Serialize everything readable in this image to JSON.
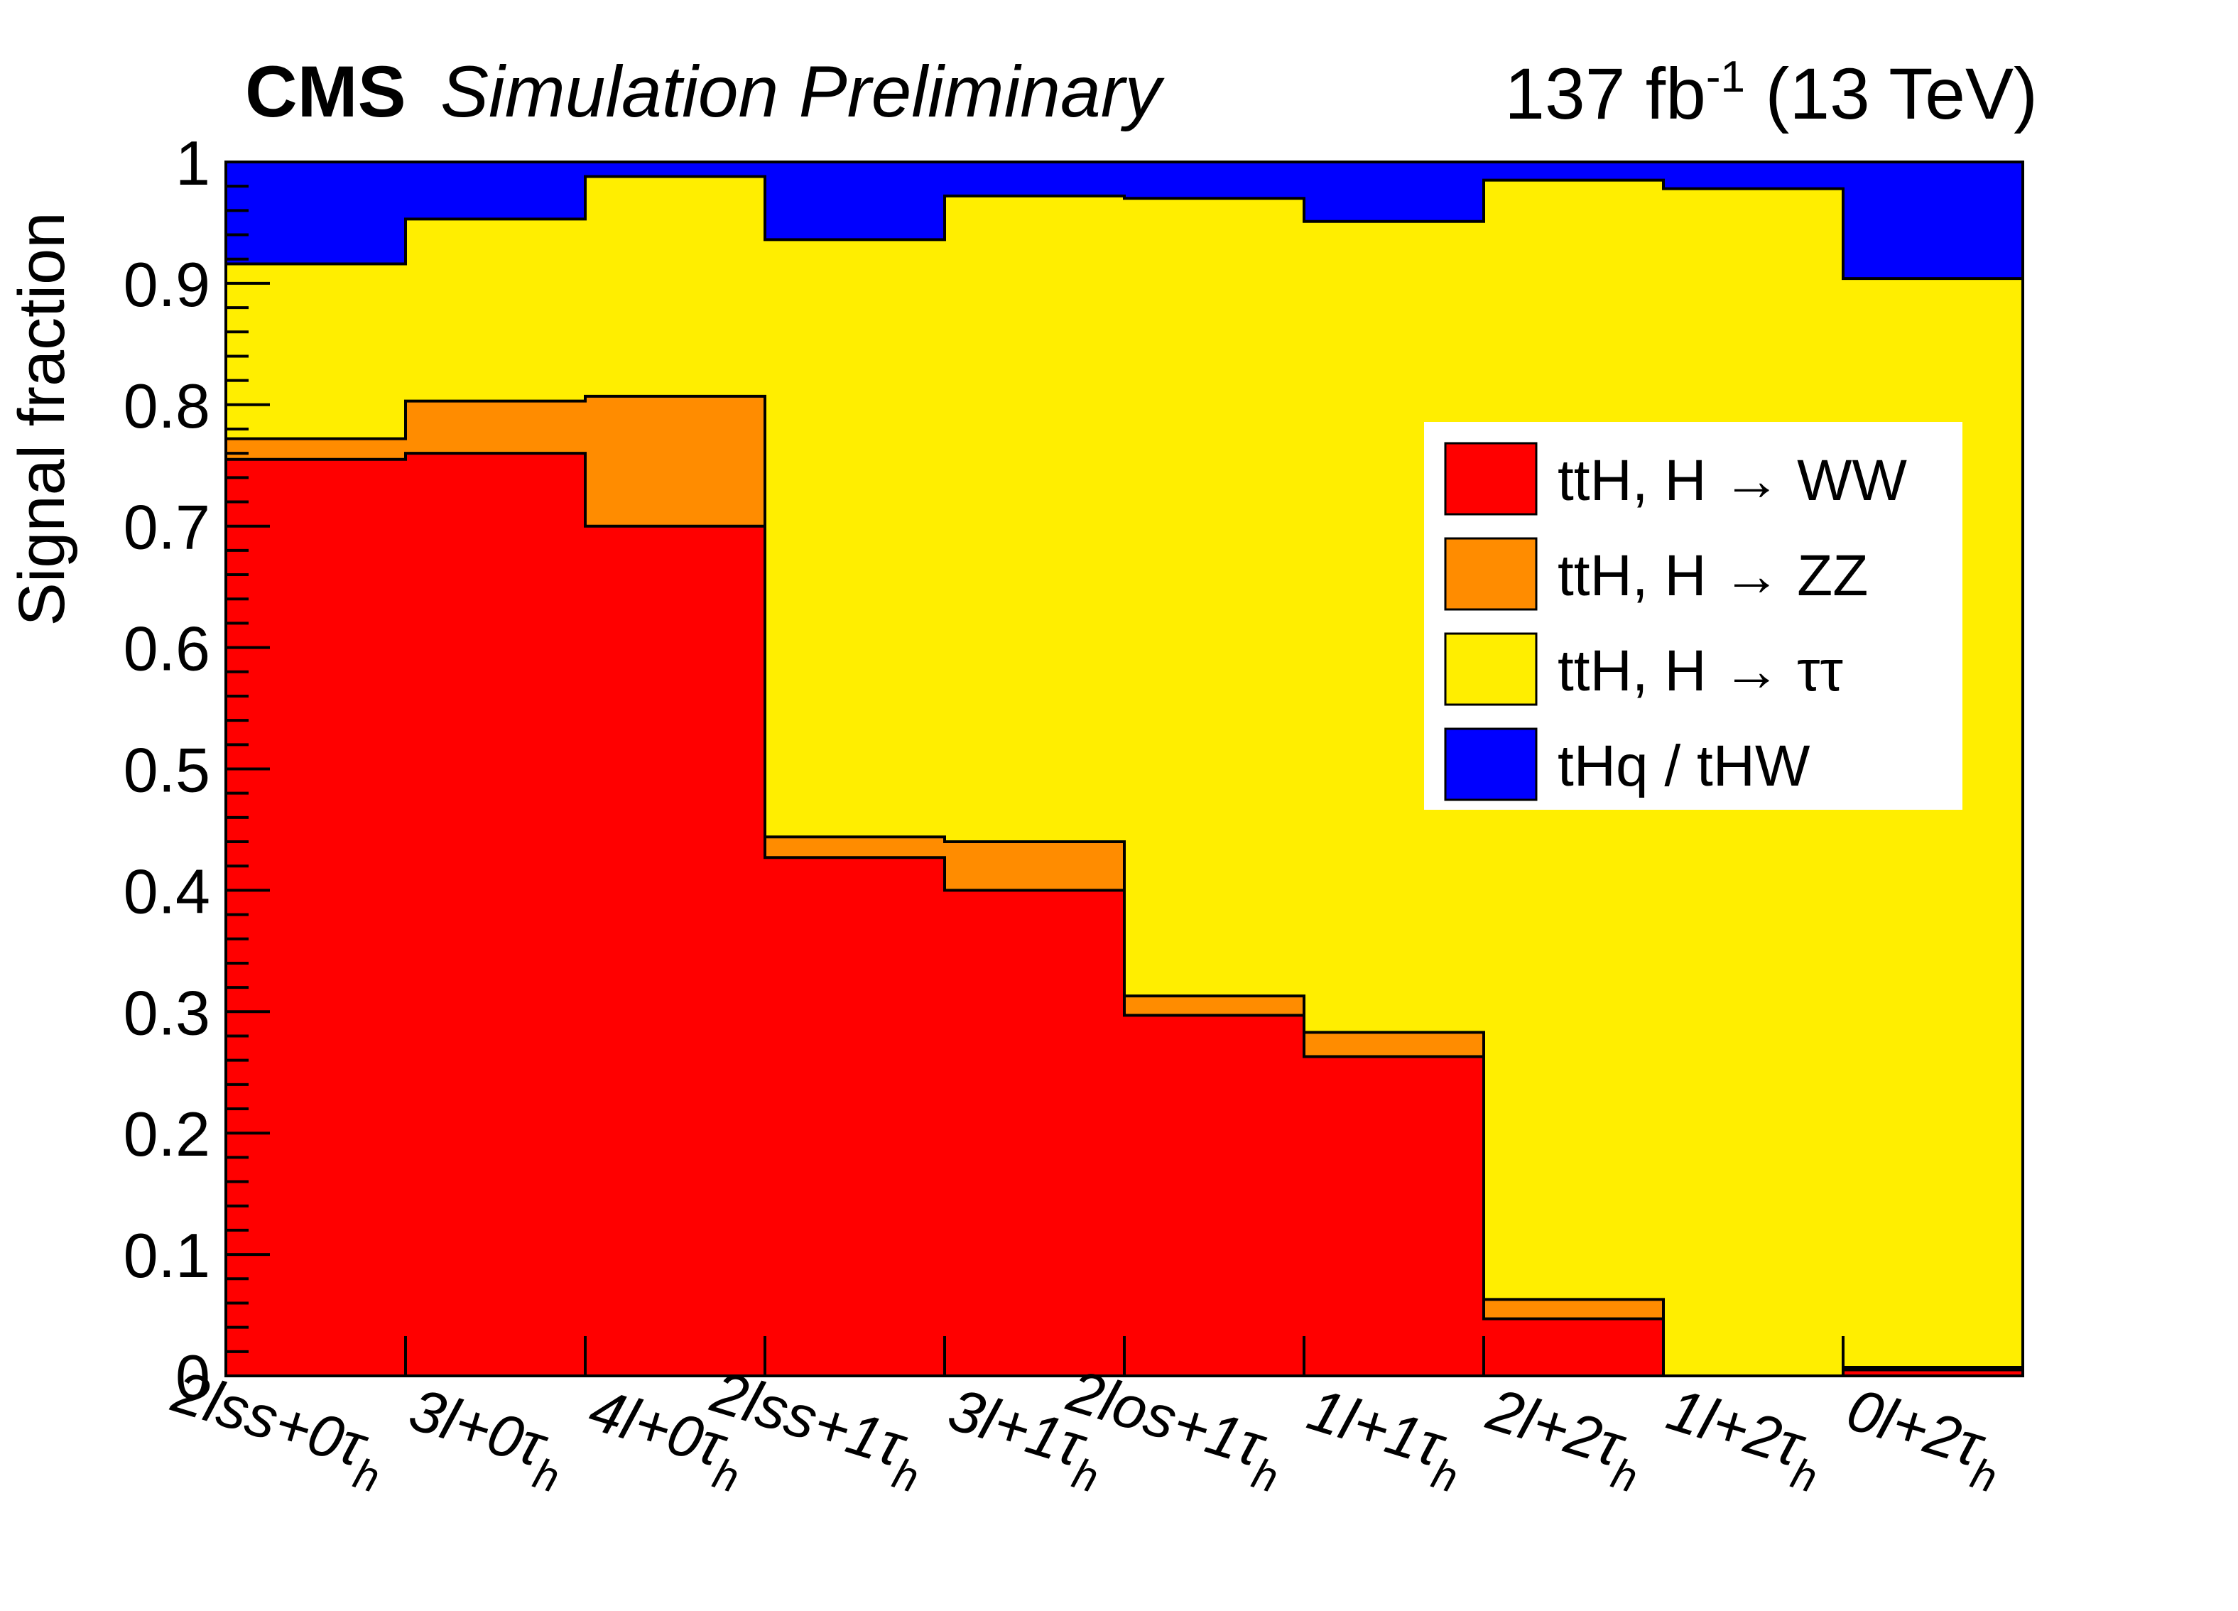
{
  "header": {
    "experiment": "CMS",
    "status": "Simulation Preliminary",
    "lumi_value": "137 fb",
    "lumi_exponent": "-1",
    "energy": " (13 TeV)"
  },
  "chart_data": {
    "type": "bar",
    "stacked": true,
    "normalized": true,
    "categories": [
      {
        "main": "2lss+0τ",
        "sub": "h"
      },
      {
        "main": "3l+0τ",
        "sub": "h"
      },
      {
        "main": "4l+0τ",
        "sub": "h"
      },
      {
        "main": "2lss+1τ",
        "sub": "h"
      },
      {
        "main": "3l+1τ",
        "sub": "h"
      },
      {
        "main": "2los+1τ",
        "sub": "h"
      },
      {
        "main": "1l+1τ",
        "sub": "h"
      },
      {
        "main": "2l+2τ",
        "sub": "h"
      },
      {
        "main": "1l+2τ",
        "sub": "h"
      },
      {
        "main": "0l+2τ",
        "sub": "h"
      }
    ],
    "series": [
      {
        "name": "ttH, H → WW",
        "color": "#ff0000",
        "values": [
          0.755,
          0.76,
          0.7,
          0.427,
          0.4,
          0.297,
          0.263,
          0.047,
          0.0,
          0.005
        ]
      },
      {
        "name": "ttH, H → ZZ",
        "color": "#ff8c00",
        "values": [
          0.017,
          0.043,
          0.107,
          0.017,
          0.04,
          0.016,
          0.02,
          0.016,
          0.0,
          0.002
        ]
      },
      {
        "name": "ttH, H → ττ",
        "color": "#ffee00",
        "values": [
          0.144,
          0.15,
          0.181,
          0.492,
          0.532,
          0.657,
          0.668,
          0.922,
          0.978,
          0.897
        ]
      },
      {
        "name": "tHq / tHW",
        "color": "#0000ff",
        "values": [
          0.084,
          0.047,
          0.012,
          0.064,
          0.028,
          0.03,
          0.049,
          0.015,
          0.022,
          0.096
        ]
      }
    ],
    "ylabel": "Signal fraction",
    "xlabel": "",
    "ylim": [
      0,
      1
    ],
    "yticks": [
      "0",
      "0.1",
      "0.2",
      "0.3",
      "0.4",
      "0.5",
      "0.6",
      "0.7",
      "0.8",
      "0.9",
      "1"
    ],
    "legend_position": "right",
    "grid": false
  }
}
